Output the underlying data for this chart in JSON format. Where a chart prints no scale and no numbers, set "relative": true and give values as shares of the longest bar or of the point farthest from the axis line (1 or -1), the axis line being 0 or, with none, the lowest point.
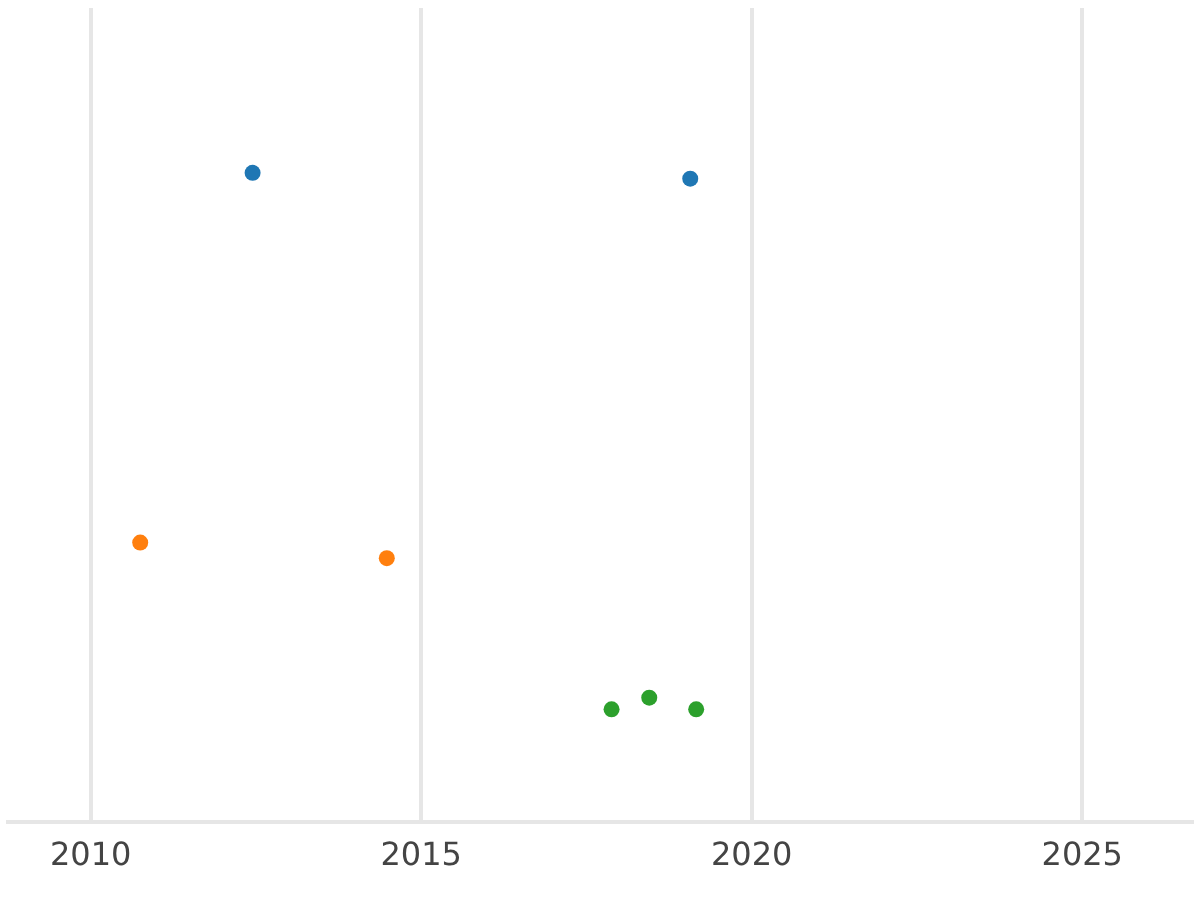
{
  "chart_data": {
    "type": "scatter",
    "relative": true,
    "grid": "x",
    "legend": false,
    "marker": "circle",
    "tick_labels": "x",
    "xlim": [
      2008.75,
      2026.66
    ],
    "xticks": [
      2010,
      2015,
      2020,
      2025
    ],
    "series": [
      {
        "color": "#1f77b4",
        "x": [
          2012.45,
          2019.07
        ],
        "values": [
          1,
          0.991
        ]
      },
      {
        "color": "#ff7f0e",
        "x": [
          2010.75,
          2014.48
        ],
        "values": [
          0.43,
          0.406
        ]
      },
      {
        "color": "#2ca02c",
        "x": [
          2017.88,
          2018.45,
          2019.16
        ],
        "values": [
          0.173,
          0.191,
          0.173
        ]
      }
    ]
  }
}
